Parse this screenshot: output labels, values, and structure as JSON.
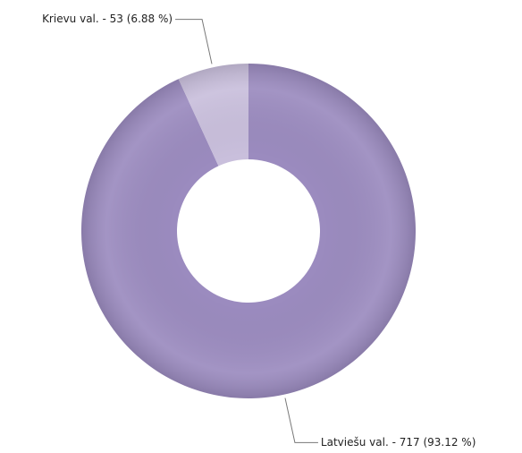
{
  "chart_data": {
    "type": "donut",
    "values": [
      717,
      53
    ],
    "value_labels": [
      "Latviešu val. - 717 (93.12 %)",
      "Krievu val. - 53 (6.88 %)"
    ],
    "colors": [
      "#9b8bbf",
      "#c9bfdc"
    ]
  }
}
